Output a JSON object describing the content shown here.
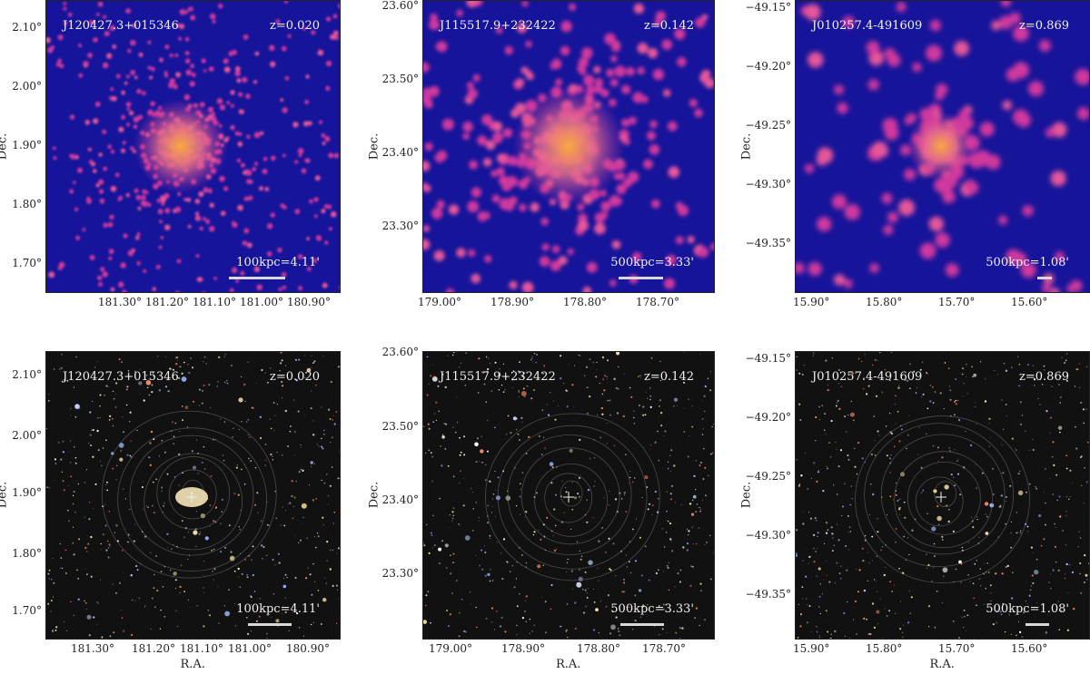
{
  "axis_labels": {
    "x": "R.A.",
    "y": "Dec."
  },
  "colors": {
    "xray_bg": "#16149a",
    "xray_blob": "#d0389e",
    "xray_core": "#f7a840",
    "optical_bg": "#111111",
    "scalebar": "#d8d8d8"
  },
  "panels": [
    {
      "name": "J120427.3+015346",
      "redshift": "z=0.020",
      "scale": "100kpc=4.11'",
      "style": "xray",
      "xticks": [
        "181.30°",
        "181.20°",
        "181.10°",
        "181.00°",
        "180.90°"
      ],
      "yticks": [
        "2.10°",
        "2.00°",
        "1.90°",
        "1.80°",
        "1.70°"
      ]
    },
    {
      "name": "J115517.9+232422",
      "redshift": "z=0.142",
      "scale": "500kpc=3.33'",
      "style": "xray",
      "xticks": [
        "179.00°",
        "178.90°",
        "178.80°",
        "178.70°"
      ],
      "yticks": [
        "23.60°",
        "23.50°",
        "23.40°",
        "23.30°"
      ]
    },
    {
      "name": "J010257.4-491609",
      "redshift": "z=0.869",
      "scale": "500kpc=1.08'",
      "style": "xray",
      "xticks": [
        "15.90°",
        "15.80°",
        "15.70°",
        "15.60°"
      ],
      "yticks": [
        "−49.15°",
        "−49.20°",
        "−49.25°",
        "−49.30°",
        "−49.35°"
      ]
    },
    {
      "name": "J120427.3+015346",
      "redshift": "z=0.020",
      "scale": "100kpc=4.11'",
      "style": "optical",
      "xticks": [
        "181.30°",
        "181.20°",
        "181.10°",
        "181.00°",
        "180.90°"
      ],
      "yticks": [
        "2.10°",
        "2.00°",
        "1.90°",
        "1.80°",
        "1.70°"
      ]
    },
    {
      "name": "J115517.9+232422",
      "redshift": "z=0.142",
      "scale": "500kpc=3.33'",
      "style": "optical",
      "xticks": [
        "179.00°",
        "178.90°",
        "178.80°",
        "178.70°"
      ],
      "yticks": [
        "23.60°",
        "23.50°",
        "23.40°",
        "23.30°"
      ]
    },
    {
      "name": "J010257.4-491609",
      "redshift": "z=0.869",
      "scale": "500kpc=1.08'",
      "style": "optical",
      "xticks": [
        "15.90°",
        "15.80°",
        "15.70°",
        "15.60°"
      ],
      "yticks": [
        "−49.15°",
        "−49.20°",
        "−49.25°",
        "−49.30°",
        "−49.35°"
      ]
    }
  ]
}
